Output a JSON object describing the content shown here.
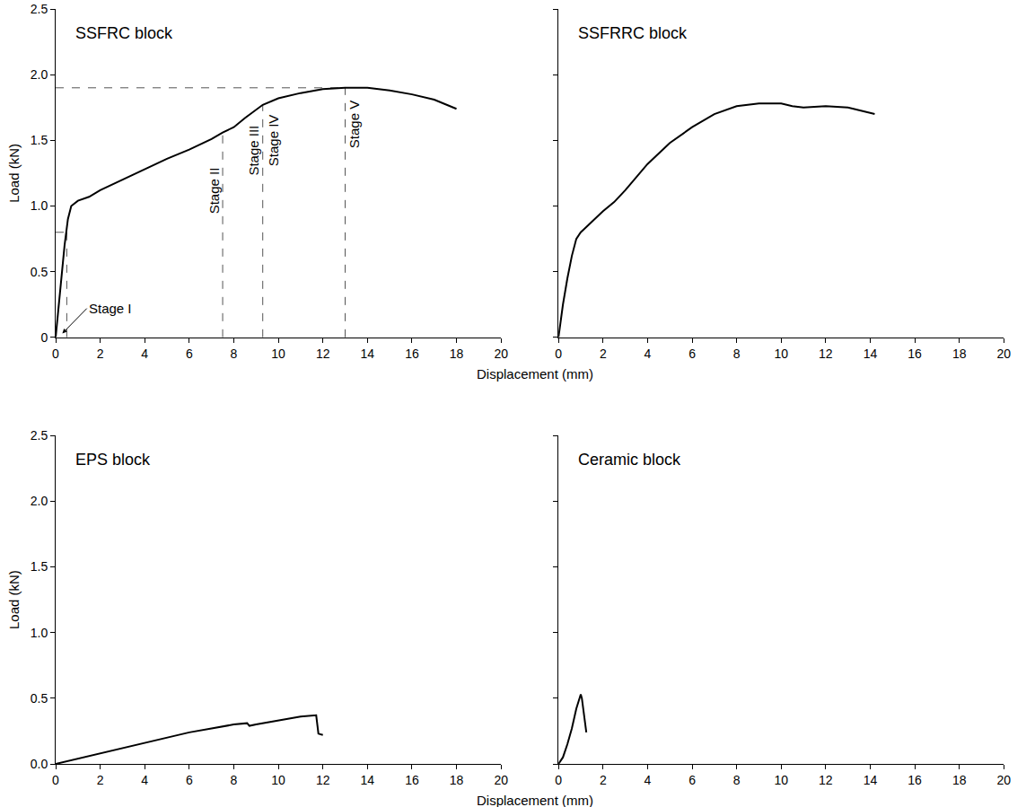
{
  "chart_data": [
    {
      "type": "line",
      "title": "SSFRC block",
      "ylabel": "Load (kN)",
      "xlabel": "Displacement (mm)",
      "x": [
        0,
        0.2,
        0.4,
        0.55,
        0.7,
        1,
        1.5,
        2,
        3,
        4,
        5,
        6,
        7,
        7.5,
        8,
        8.5,
        9,
        9.3,
        10,
        11,
        12,
        13,
        14,
        15,
        16,
        17,
        18
      ],
      "values": [
        0,
        0.35,
        0.7,
        0.9,
        1.0,
        1.04,
        1.07,
        1.12,
        1.2,
        1.28,
        1.36,
        1.43,
        1.51,
        1.56,
        1.6,
        1.67,
        1.73,
        1.77,
        1.82,
        1.86,
        1.89,
        1.9,
        1.9,
        1.88,
        1.85,
        1.81,
        1.74
      ],
      "color": "#000000",
      "xlim": [
        0,
        20
      ],
      "ylim": [
        0,
        2.5
      ],
      "xticks": [
        0,
        2,
        4,
        6,
        8,
        10,
        12,
        14,
        16,
        18,
        20
      ],
      "yticks": [
        0,
        0.5,
        {
          "value": 1,
          "label": "1.0"
        },
        1.5,
        {
          "value": 2,
          "label": "2.0"
        },
        2.5
      ],
      "grid": false,
      "reference_lines": [
        {
          "x": [
            0,
            13
          ],
          "y": [
            1.9,
            1.9
          ]
        },
        {
          "x": [
            13,
            13
          ],
          "y": [
            0,
            1.9
          ]
        },
        {
          "x": [
            0,
            0.5
          ],
          "y": [
            0.8,
            0.8
          ]
        },
        {
          "x": [
            0.5,
            0.5
          ],
          "y": [
            0,
            0.8
          ]
        },
        {
          "x": [
            7.5,
            7.5
          ],
          "y": [
            0,
            1.56
          ]
        },
        {
          "x": [
            9.3,
            9.3
          ],
          "y": [
            0,
            1.77
          ]
        }
      ],
      "annotations": [
        {
          "text": "Stage I",
          "x": 0.3,
          "y": 0.03,
          "arrow_from": [
            1.4,
            0.22
          ]
        },
        {
          "text": "Stage II",
          "x": 7.15,
          "y": 1.12
        },
        {
          "text": "Stage III",
          "x": 8.85,
          "y": 1.42
        },
        {
          "text": "Stage IV",
          "x": 9.75,
          "y": 1.5
        },
        {
          "text": "Stage V",
          "x": 13.4,
          "y": 1.62
        }
      ]
    },
    {
      "type": "line",
      "title": "SSFRRC block",
      "x": [
        0,
        0.2,
        0.4,
        0.6,
        0.8,
        1,
        1.5,
        2,
        2.5,
        3,
        4,
        5,
        6,
        7,
        8,
        9,
        10,
        10.5,
        11,
        12,
        13,
        14,
        14.2
      ],
      "values": [
        0,
        0.25,
        0.45,
        0.62,
        0.75,
        0.8,
        0.88,
        0.96,
        1.03,
        1.12,
        1.32,
        1.48,
        1.6,
        1.7,
        1.76,
        1.78,
        1.78,
        1.76,
        1.75,
        1.76,
        1.75,
        1.71,
        1.7
      ],
      "color": "#000000",
      "xlim": [
        0,
        20
      ],
      "ylim": [
        0,
        2.5
      ],
      "xticks": [
        0,
        2,
        4,
        6,
        8,
        10,
        12,
        14,
        16,
        18,
        20
      ],
      "yticks": [
        0,
        0.5,
        1,
        1.5,
        2,
        2.5
      ],
      "grid": false,
      "tick_labels": "x"
    },
    {
      "type": "line",
      "title": "EPS block",
      "ylabel": "Load (kN)",
      "xlabel": "Displacement (mm)",
      "x": [
        0,
        1,
        2,
        3,
        4,
        5,
        6,
        7,
        8,
        8.6,
        8.7,
        9,
        10,
        11,
        11.7,
        11.8,
        12
      ],
      "values": [
        0,
        0.04,
        0.08,
        0.12,
        0.16,
        0.2,
        0.24,
        0.27,
        0.3,
        0.31,
        0.29,
        0.3,
        0.33,
        0.36,
        0.37,
        0.23,
        0.22
      ],
      "color": "#000000",
      "xlim": [
        0,
        20
      ],
      "ylim": [
        0,
        2.5
      ],
      "xticks": [
        0,
        2,
        4,
        6,
        8,
        10,
        12,
        14,
        16,
        18,
        20
      ],
      "yticks": [
        {
          "value": 0,
          "label": "0.0"
        },
        0.5,
        {
          "value": 1,
          "label": "1.0"
        },
        1.5,
        {
          "value": 2,
          "label": "2.0"
        },
        2.5
      ],
      "grid": false
    },
    {
      "type": "line",
      "title": "Ceramic block",
      "x": [
        0,
        0.2,
        0.4,
        0.6,
        0.8,
        1.0,
        1.05,
        1.2,
        1.25
      ],
      "values": [
        0,
        0.05,
        0.15,
        0.27,
        0.42,
        0.53,
        0.5,
        0.3,
        0.24
      ],
      "color": "#000000",
      "xlim": [
        0,
        20
      ],
      "ylim": [
        0,
        2.5
      ],
      "xticks": [
        0,
        2,
        4,
        6,
        8,
        10,
        12,
        14,
        16,
        18,
        20
      ],
      "yticks": [
        0,
        0.5,
        1,
        1.5,
        2,
        2.5
      ],
      "grid": false,
      "tick_labels": "x"
    }
  ]
}
